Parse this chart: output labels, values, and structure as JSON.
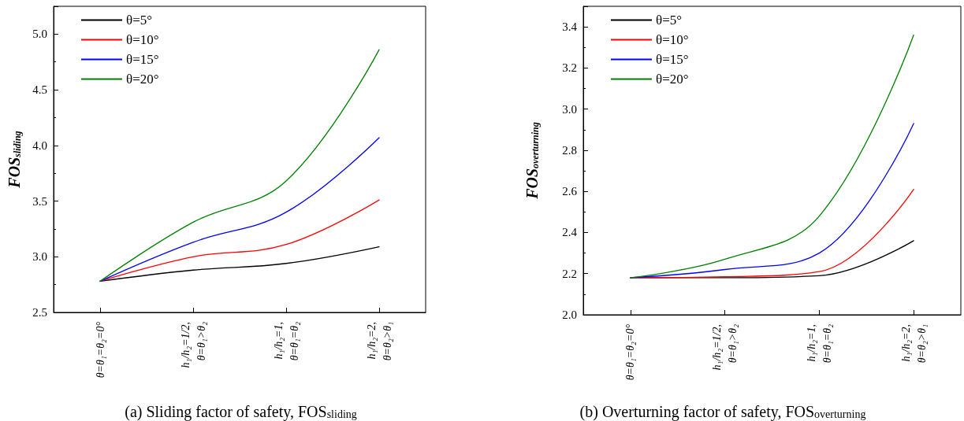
{
  "chart_data": [
    {
      "type": "line",
      "ylabel": "FOS$_{sliding}$",
      "annotations": [
        "(a) Sliding factor of safety, FOS$_{sliding}$"
      ],
      "categories": [
        "θ=θ₁=θ₂=0°",
        "h₁/h₂=1/2,\nθ=θ₁>θ₂",
        "h₁/h₂=1,\nθ=θ₁=θ₂",
        "h₁/h₂=2,\nθ=θ₂>θ₁"
      ],
      "series": [
        {
          "name": "θ=5°",
          "color": "#000000",
          "values": [
            2.78,
            2.88,
            2.94,
            3.09
          ]
        },
        {
          "name": "θ=10°",
          "color": "#ff0000",
          "values": [
            2.78,
            3.0,
            3.11,
            3.51
          ]
        },
        {
          "name": "θ=15°",
          "color": "#0000ff",
          "values": [
            2.78,
            3.13,
            3.4,
            4.07
          ]
        },
        {
          "name": "θ=20°",
          "color": "#008000",
          "values": [
            2.78,
            3.31,
            3.68,
            4.86
          ]
        }
      ],
      "ylim": [
        2.5,
        5.25
      ],
      "yticks": [
        2.5,
        {
          "value": 3,
          "label": "3.0"
        },
        3.5,
        {
          "value": 4,
          "label": "4.0"
        },
        4.5,
        {
          "value": 5,
          "label": "5.0"
        }
      ],
      "legend": "top left",
      "grid": false,
      "marker": "none",
      "line_style": "solid"
    },
    {
      "type": "line",
      "ylabel": "FOS$_{overturning}$",
      "annotations": [
        "(b) Overturning factor of safety, FOS$_{overturning}$"
      ],
      "categories": [
        "θ=θ₁=θ₂=0°",
        "h₁/h₂=1/2,\nθ=θ₁>θ₂",
        "h₁/h₂=1,\nθ=θ₁=θ₂",
        "h₁/h₂=2,\nθ=θ₂>θ₁"
      ],
      "series": [
        {
          "name": "θ=5°",
          "color": "#000000",
          "values": [
            2.18,
            2.18,
            2.19,
            2.36
          ]
        },
        {
          "name": "θ=10°",
          "color": "#ff0000",
          "values": [
            2.18,
            2.185,
            2.21,
            2.61
          ]
        },
        {
          "name": "θ=15°",
          "color": "#0000ff",
          "values": [
            2.18,
            2.22,
            2.3,
            2.93
          ]
        },
        {
          "name": "θ=20°",
          "color": "#008000",
          "values": [
            2.18,
            2.27,
            2.48,
            3.36
          ]
        }
      ],
      "ylim": [
        2.0,
        3.5
      ],
      "yticks": [
        {
          "value": 2,
          "label": "2.0"
        },
        2.2,
        2.4,
        2.6,
        2.8,
        {
          "value": 3,
          "label": "3.0"
        },
        3.2,
        3.4
      ],
      "legend": "top left",
      "grid": false,
      "marker": "none",
      "line_style": "solid"
    }
  ]
}
